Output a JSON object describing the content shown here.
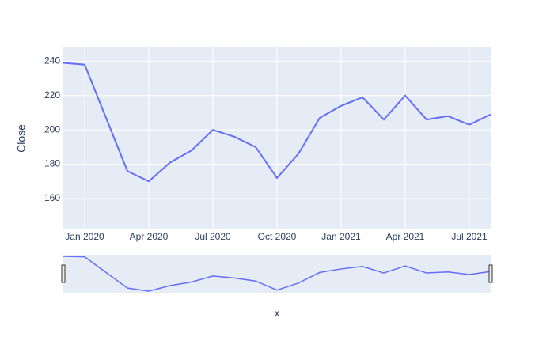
{
  "chart_data": {
    "type": "line",
    "x_label": "x",
    "y_label": "Close",
    "x": [
      "2019-12",
      "2020-01",
      "2020-02",
      "2020-03",
      "2020-04",
      "2020-05",
      "2020-06",
      "2020-07",
      "2020-08",
      "2020-09",
      "2020-10",
      "2020-11",
      "2020-12",
      "2021-01",
      "2021-02",
      "2021-03",
      "2021-04",
      "2021-05",
      "2021-06",
      "2021-07",
      "2021-08"
    ],
    "series": [
      {
        "name": "Close",
        "color": "#636efa",
        "values": [
          239,
          238,
          207,
          176,
          170,
          181,
          188,
          200,
          196,
          190,
          172,
          186,
          207,
          214,
          219,
          206,
          220,
          206,
          208,
          203,
          209
        ]
      }
    ],
    "xlim": [
      "2019-12",
      "2021-08"
    ],
    "xticks": [
      {
        "value": "2020-01",
        "label": "Jan 2020"
      },
      {
        "value": "2020-04",
        "label": "Apr 2020"
      },
      {
        "value": "2020-07",
        "label": "Jul 2020"
      },
      {
        "value": "2020-10",
        "label": "Oct 2020"
      },
      {
        "value": "2021-01",
        "label": "Jan 2021"
      },
      {
        "value": "2021-04",
        "label": "Apr 2021"
      },
      {
        "value": "2021-07",
        "label": "Jul 2021"
      }
    ],
    "ylim": [
      142,
      248
    ],
    "yticks": [
      160,
      180,
      200,
      220,
      240
    ],
    "grid": true,
    "range_slider": true
  }
}
